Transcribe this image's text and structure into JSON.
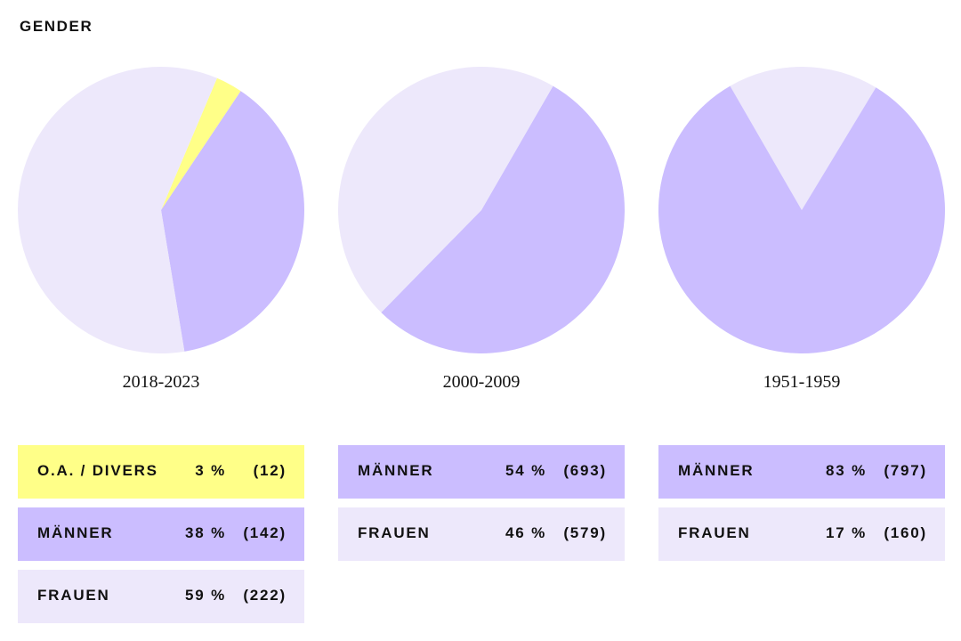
{
  "section_title": "GENDER",
  "colors": {
    "divers": "#ffff88",
    "maenner": "#cbbdff",
    "frauen": "#ede8fb"
  },
  "chart_data": [
    {
      "type": "pie",
      "title": "2018-2023",
      "slices": [
        {
          "label": "O.A. / DIVERS",
          "value": 3,
          "count": 12,
          "color": "#ffff88",
          "pct_text": "3 %",
          "count_text": "(12)"
        },
        {
          "label": "MÄNNER",
          "value": 38,
          "count": 142,
          "color": "#cbbdff",
          "pct_text": "38 %",
          "count_text": "(142)"
        },
        {
          "label": "FRAUEN",
          "value": 59,
          "count": 222,
          "color": "#ede8fb",
          "pct_text": "59 %",
          "count_text": "(222)"
        }
      ]
    },
    {
      "type": "pie",
      "title": "2000-2009",
      "slices": [
        {
          "label": "MÄNNER",
          "value": 54,
          "count": 693,
          "color": "#cbbdff",
          "pct_text": "54 %",
          "count_text": "(693)"
        },
        {
          "label": "FRAUEN",
          "value": 46,
          "count": 579,
          "color": "#ede8fb",
          "pct_text": "46 %",
          "count_text": "(579)"
        }
      ]
    },
    {
      "type": "pie",
      "title": "1951-1959",
      "slices": [
        {
          "label": "MÄNNER",
          "value": 83,
          "count": 797,
          "color": "#cbbdff",
          "pct_text": "83 %",
          "count_text": "(797)"
        },
        {
          "label": "FRAUEN",
          "value": 17,
          "count": 160,
          "color": "#ede8fb",
          "pct_text": "17 %",
          "count_text": "(160)"
        }
      ]
    }
  ]
}
